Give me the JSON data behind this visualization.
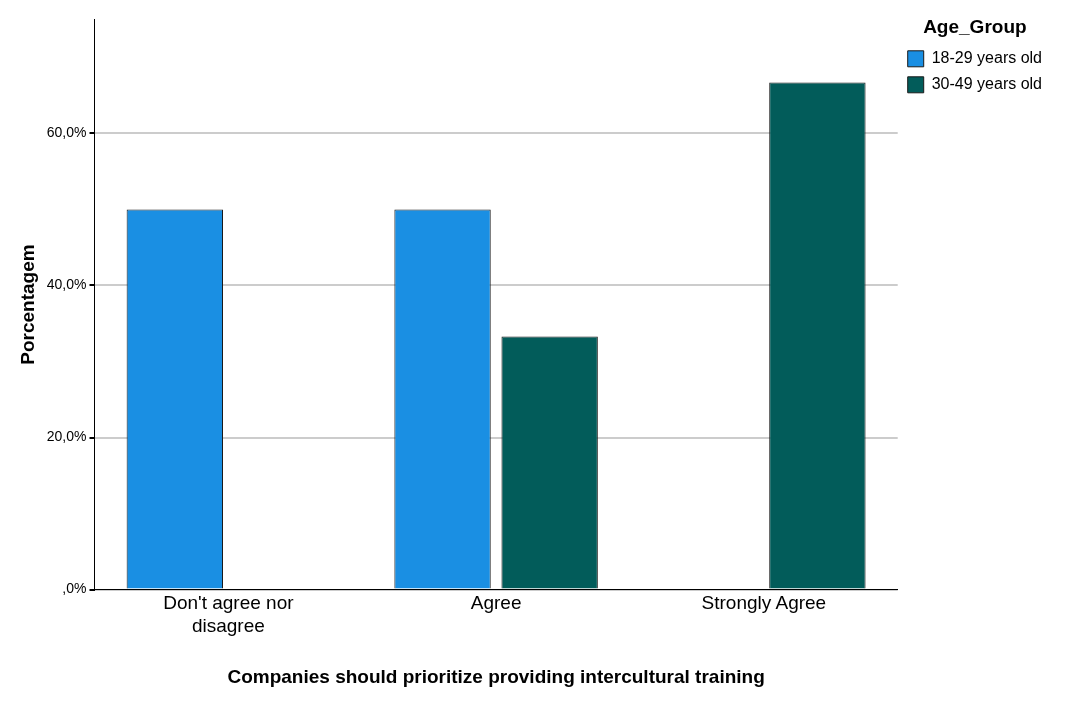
{
  "chart_data": {
    "type": "bar",
    "xlabel": "Companies should prioritize providing intercultural training",
    "ylabel": "Porcentagem",
    "legend_title": "Age_Group",
    "categories": [
      "Don't agree nor disagree",
      "Agree",
      "Strongly Agree"
    ],
    "series": [
      {
        "name": "18-29 years old",
        "color": "#1a8fe3",
        "values": [
          50,
          50,
          0
        ]
      },
      {
        "name": "30-49 years old",
        "color": "#025c5a",
        "values": [
          0,
          33.3,
          66.7
        ]
      }
    ],
    "ylim": [
      0,
      75
    ],
    "yticks": [
      {
        "value": 0,
        "label": ",0%"
      },
      {
        "value": 20,
        "label": "20,0%"
      },
      {
        "value": 40,
        "label": "40,0%"
      },
      {
        "value": 60,
        "label": "60,0%"
      }
    ],
    "grid": "y",
    "legend": "top right"
  }
}
